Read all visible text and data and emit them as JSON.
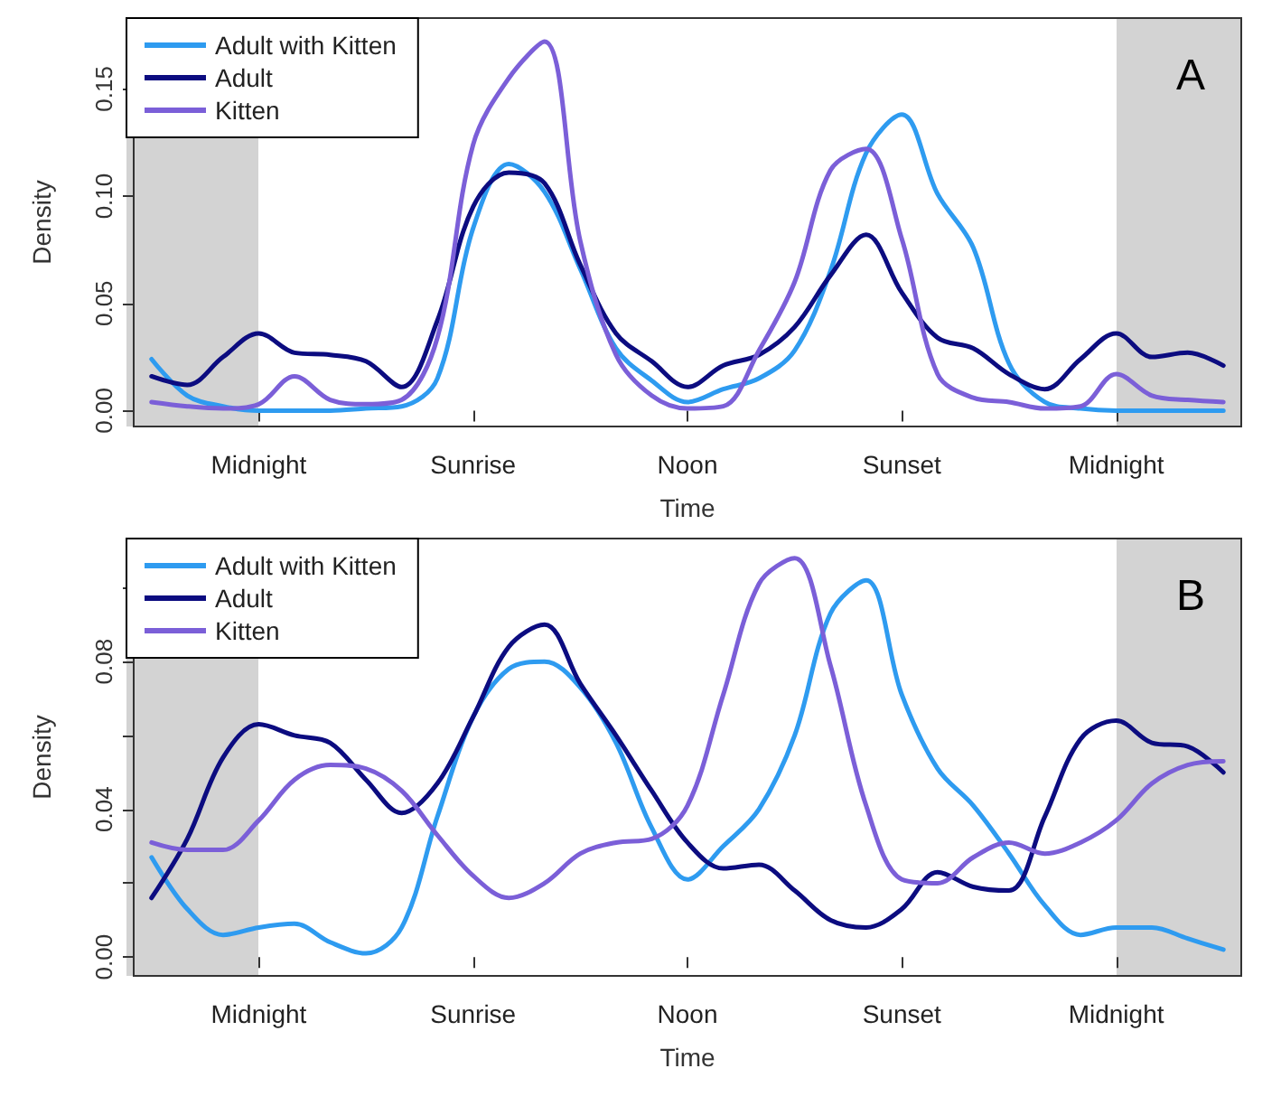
{
  "chart_data": [
    {
      "type": "line",
      "xlabel": "Time",
      "ylabel": "Density",
      "annotations": [
        "A"
      ],
      "legend": "top left",
      "grid": false,
      "marker": "none",
      "line_style": "solid",
      "categories": [
        null,
        null,
        null,
        "Midnight",
        null,
        null,
        null,
        null,
        null,
        "Sunrise",
        null,
        null,
        null,
        null,
        null,
        "Noon",
        null,
        null,
        null,
        null,
        null,
        "Sunset",
        null,
        null,
        null,
        null,
        null,
        "Midnight",
        null,
        null,
        null
      ],
      "ylim": [
        -0.0074,
        0.183
      ],
      "yticks": [
        {
          "value": 0,
          "label": "0.00"
        },
        {
          "value": 0.05,
          "label": "0.05"
        },
        {
          "value": 0.1,
          "label": "0.10"
        },
        {
          "value": 0.15,
          "label": "0.15"
        }
      ],
      "series": [
        {
          "name": "Adult with Kitten",
          "color": "#2e9bf0",
          "values": [
            0.024,
            0.007,
            0.002,
            0,
            0,
            0,
            0.001,
            0.002,
            0.015,
            0.085,
            0.115,
            0.102,
            0.066,
            0.029,
            0.014,
            0.004,
            0.01,
            0.015,
            0.028,
            0.065,
            0.12,
            0.138,
            0.101,
            0.076,
            0.022,
            0.004,
            0.001,
            0,
            0,
            0,
            0
          ]
        },
        {
          "name": "Adult",
          "color": "#0c0c80",
          "values": [
            0.016,
            0.012,
            0.025,
            0.036,
            0.027,
            0.026,
            0.023,
            0.011,
            0.042,
            0.095,
            0.111,
            0.106,
            0.068,
            0.036,
            0.023,
            0.011,
            0.021,
            0.026,
            0.039,
            0.063,
            0.082,
            0.055,
            0.034,
            0.029,
            0.017,
            0.01,
            0.024,
            0.036,
            0.025,
            0.027,
            0.021
          ]
        },
        {
          "name": "Kitten",
          "color": "#7b5fd8",
          "values": [
            0.004,
            0.002,
            0.001,
            0.003,
            0.016,
            0.005,
            0.003,
            0.005,
            0.034,
            0.124,
            0.155,
            0.172,
            0.079,
            0.026,
            0.007,
            0.001,
            0.002,
            0.028,
            0.06,
            0.112,
            0.122,
            0.08,
            0.017,
            0.006,
            0.004,
            0.001,
            0.002,
            0.017,
            0.007,
            0.005,
            0.004
          ]
        }
      ]
    },
    {
      "type": "line",
      "xlabel": "Time",
      "ylabel": "Density",
      "annotations": [
        "B"
      ],
      "legend": "top left",
      "grid": false,
      "marker": "none",
      "line_style": "solid",
      "categories": [
        null,
        null,
        null,
        "Midnight",
        null,
        null,
        null,
        null,
        null,
        "Sunrise",
        null,
        null,
        null,
        null,
        null,
        "Noon",
        null,
        null,
        null,
        null,
        null,
        "Sunset",
        null,
        null,
        null,
        null,
        null,
        "Midnight",
        null,
        null,
        null
      ],
      "ylim": [
        -0.0051,
        0.1133
      ],
      "yticks": [
        {
          "value": 0,
          "label": "0.00"
        },
        {
          "value": 0.02,
          "label": null
        },
        {
          "value": 0.04,
          "label": "0.04"
        },
        {
          "value": 0.06,
          "label": null
        },
        {
          "value": 0.08,
          "label": "0.08"
        },
        {
          "value": 0.1,
          "label": null
        }
      ],
      "series": [
        {
          "name": "Adult with Kitten",
          "color": "#2e9bf0",
          "values": [
            0.027,
            0.013,
            0.006,
            0.008,
            0.009,
            0.004,
            0.001,
            0.008,
            0.038,
            0.065,
            0.078,
            0.08,
            0.073,
            0.058,
            0.035,
            0.021,
            0.03,
            0.04,
            0.06,
            0.093,
            0.102,
            0.071,
            0.051,
            0.041,
            0.028,
            0.014,
            0.006,
            0.008,
            0.008,
            0.005,
            0.002
          ]
        },
        {
          "name": "Adult",
          "color": "#0c0c80",
          "values": [
            0.016,
            0.032,
            0.054,
            0.063,
            0.06,
            0.058,
            0.048,
            0.039,
            0.047,
            0.065,
            0.084,
            0.09,
            0.074,
            0.06,
            0.045,
            0.031,
            0.024,
            0.025,
            0.018,
            0.01,
            0.008,
            0.013,
            0.023,
            0.019,
            0.018,
            0.038,
            0.059,
            0.064,
            0.058,
            0.057,
            0.05
          ]
        },
        {
          "name": "Kitten",
          "color": "#7b5fd8",
          "values": [
            0.031,
            0.029,
            0.029,
            0.037,
            0.048,
            0.052,
            0.051,
            0.045,
            0.033,
            0.022,
            0.016,
            0.02,
            0.028,
            0.031,
            0.032,
            0.041,
            0.071,
            0.101,
            0.108,
            0.079,
            0.041,
            0.021,
            0.02,
            0.027,
            0.031,
            0.028,
            0.031,
            0.037,
            0.047,
            0.052,
            0.053
          ]
        }
      ]
    }
  ]
}
